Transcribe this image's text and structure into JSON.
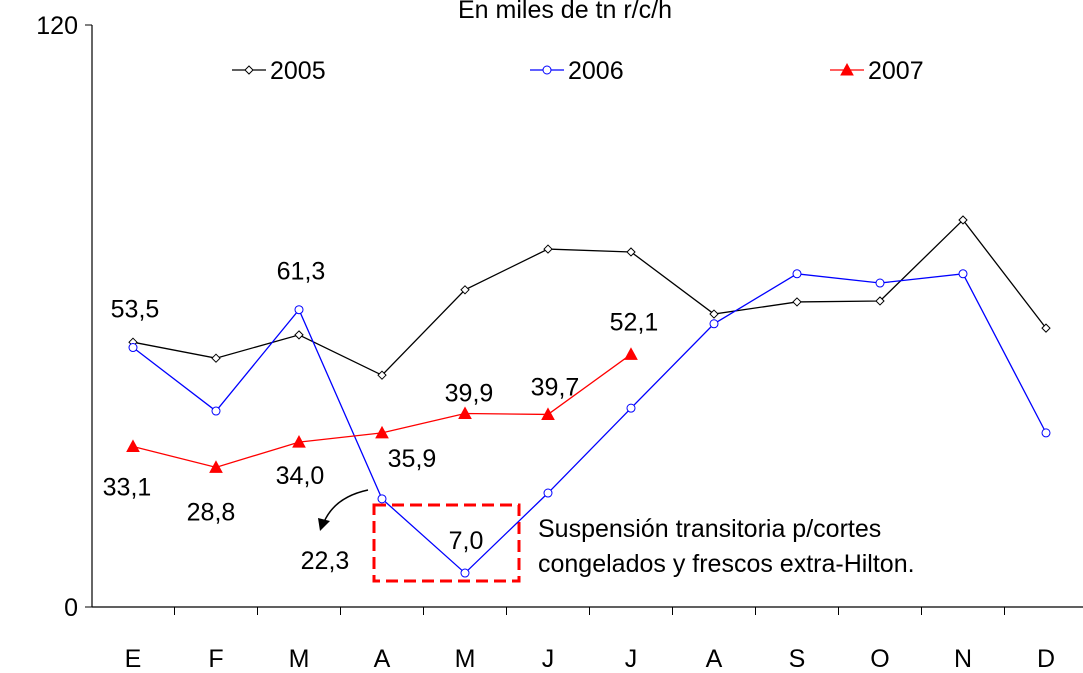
{
  "chart_data": {
    "type": "line",
    "title": "En miles de tn r/c/h",
    "categories": [
      "E",
      "F",
      "M",
      "A",
      "M",
      "J",
      "J",
      "A",
      "S",
      "O",
      "N",
      "D"
    ],
    "series": [
      {
        "name": "2005",
        "color": "#000000",
        "marker": "diamond",
        "values": [
          54.6,
          51.3,
          56.1,
          47.8,
          65.4,
          73.8,
          73.2,
          60.4,
          62.9,
          63.1,
          79.8,
          57.5
        ]
      },
      {
        "name": "2006",
        "color": "#0000ff",
        "marker": "circle",
        "values": [
          53.5,
          40.4,
          61.3,
          22.3,
          7.0,
          23.5,
          41.0,
          58.4,
          68.7,
          66.8,
          68.7,
          35.9
        ],
        "value_labels": [
          "53,5",
          null,
          "61,3",
          "22,3",
          "7,0",
          null,
          null,
          null,
          null,
          null,
          null,
          null
        ]
      },
      {
        "name": "2007",
        "color": "#ff0000",
        "marker": "triangle",
        "values": [
          33.1,
          28.8,
          34.0,
          35.9,
          39.9,
          39.7,
          52.1,
          null,
          null,
          null,
          null,
          null
        ],
        "value_labels": [
          "33,1",
          "28,8",
          "34,0",
          "35,9",
          "39,9",
          "39,7",
          "52,1",
          null,
          null,
          null,
          null,
          null
        ]
      }
    ],
    "annotation": [
      "Suspensión transitoria p/cortes",
      "congelados y frescos extra-Hilton."
    ],
    "ylim": [
      0,
      120
    ],
    "yticks": [
      0,
      120
    ],
    "grid": false,
    "legend": "top"
  }
}
